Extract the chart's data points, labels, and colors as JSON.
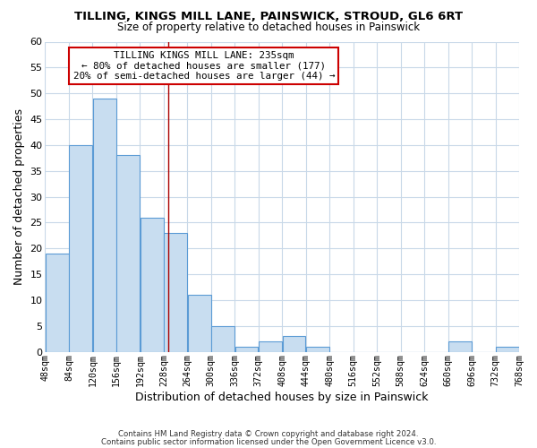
{
  "title": "TILLING, KINGS MILL LANE, PAINSWICK, STROUD, GL6 6RT",
  "subtitle": "Size of property relative to detached houses in Painswick",
  "xlabel": "Distribution of detached houses by size in Painswick",
  "ylabel": "Number of detached properties",
  "bar_left_edges": [
    48,
    84,
    120,
    156,
    192,
    228,
    264,
    300,
    336,
    372,
    408,
    444,
    480,
    516,
    552,
    588,
    624,
    660,
    696,
    732
  ],
  "bar_heights": [
    19,
    40,
    49,
    38,
    26,
    23,
    11,
    5,
    1,
    2,
    3,
    1,
    0,
    0,
    0,
    0,
    0,
    2,
    0,
    1
  ],
  "bin_width": 36,
  "bar_color": "#c8ddf0",
  "bar_edge_color": "#5b9bd5",
  "vline_x": 235,
  "vline_color": "#aa0000",
  "ylim": [
    0,
    60
  ],
  "yticks": [
    0,
    5,
    10,
    15,
    20,
    25,
    30,
    35,
    40,
    45,
    50,
    55,
    60
  ],
  "xtick_labels": [
    "48sqm",
    "84sqm",
    "120sqm",
    "156sqm",
    "192sqm",
    "228sqm",
    "264sqm",
    "300sqm",
    "336sqm",
    "372sqm",
    "408sqm",
    "444sqm",
    "480sqm",
    "516sqm",
    "552sqm",
    "588sqm",
    "624sqm",
    "660sqm",
    "696sqm",
    "732sqm",
    "768sqm"
  ],
  "xtick_positions": [
    48,
    84,
    120,
    156,
    192,
    228,
    264,
    300,
    336,
    372,
    408,
    444,
    480,
    516,
    552,
    588,
    624,
    660,
    696,
    732,
    768
  ],
  "ann_line1": "TILLING KINGS MILL LANE: 235sqm",
  "ann_line2": "← 80% of detached houses are smaller (177)",
  "ann_line3": "20% of semi-detached houses are larger (44) →",
  "footer_line1": "Contains HM Land Registry data © Crown copyright and database right 2024.",
  "footer_line2": "Contains public sector information licensed under the Open Government Licence v3.0.",
  "background_color": "#ffffff",
  "grid_color": "#c8d8e8",
  "xlim_left": 48,
  "xlim_right": 768
}
